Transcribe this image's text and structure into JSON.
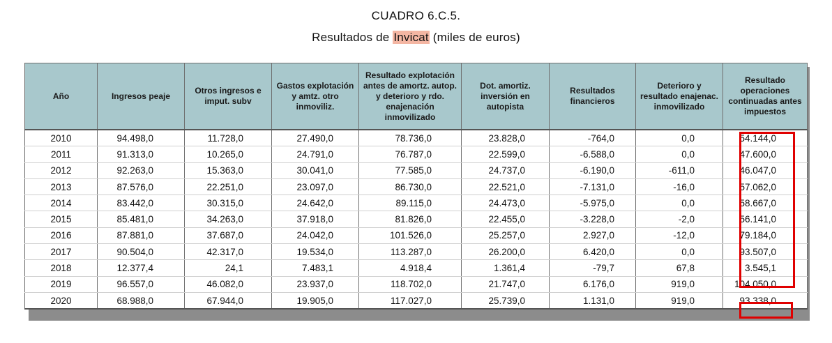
{
  "title": "CUADRO 6.C.5.",
  "subtitle": {
    "before": "Resultados de ",
    "highlight": "Invicat",
    "after": " (miles de euros)"
  },
  "table": {
    "headers": [
      "Año",
      "Ingresos peaje",
      "Otros ingresos e imput. subv",
      "Gastos explotación y amtz. otro inmoviliz.",
      "Resultado explotación antes de amortz. autop. y deterioro y rdo. enajenación inmovilizado",
      "Dot. amortiz. inversión en autopista",
      "Resultados financieros",
      "Deterioro y resultado enajenac. inmovilizado",
      "Resultado operaciones continuadas antes impuestos"
    ],
    "rows": [
      [
        "2010",
        "94.498,0",
        "11.728,0",
        "27.490,0",
        "78.736,0",
        "23.828,0",
        "-764,0",
        "0,0",
        "54.144,0"
      ],
      [
        "2011",
        "91.313,0",
        "10.265,0",
        "24.791,0",
        "76.787,0",
        "22.599,0",
        "-6.588,0",
        "0,0",
        "47.600,0"
      ],
      [
        "2012",
        "92.263,0",
        "15.363,0",
        "30.041,0",
        "77.585,0",
        "24.737,0",
        "-6.190,0",
        "-611,0",
        "46.047,0"
      ],
      [
        "2013",
        "87.576,0",
        "22.251,0",
        "23.097,0",
        "86.730,0",
        "22.521,0",
        "-7.131,0",
        "-16,0",
        "57.062,0"
      ],
      [
        "2014",
        "83.442,0",
        "30.315,0",
        "24.642,0",
        "89.115,0",
        "24.473,0",
        "-5.975,0",
        "0,0",
        "58.667,0"
      ],
      [
        "2015",
        "85.481,0",
        "34.263,0",
        "37.918,0",
        "81.826,0",
        "22.455,0",
        "-3.228,0",
        "-2,0",
        "56.141,0"
      ],
      [
        "2016",
        "87.881,0",
        "37.687,0",
        "24.042,0",
        "101.526,0",
        "25.257,0",
        "2.927,0",
        "-12,0",
        "79.184,0"
      ],
      [
        "2017",
        "90.504,0",
        "42.317,0",
        "19.534,0",
        "113.287,0",
        "26.200,0",
        "6.420,0",
        "0,0",
        "93.507,0"
      ],
      [
        "2018",
        "12.377,4",
        "24,1",
        "7.483,1",
        "4.918,4",
        "1.361,4",
        "-79,7",
        "67,8",
        "3.545,1"
      ],
      [
        "2019",
        "96.557,0",
        "46.082,0",
        "23.937,0",
        "118.702,0",
        "21.747,0",
        "6.176,0",
        "919,0",
        "104.050,0"
      ],
      [
        "2020",
        "68.988,0",
        "67.944,0",
        "19.905,0",
        "117.027,0",
        "25.739,0",
        "1.131,0",
        "919,0",
        "93.338,0"
      ]
    ]
  },
  "colors": {
    "header_bg": "#a8c8cc",
    "highlight": "#f4b6a3",
    "annotation_box": "#e00000"
  }
}
